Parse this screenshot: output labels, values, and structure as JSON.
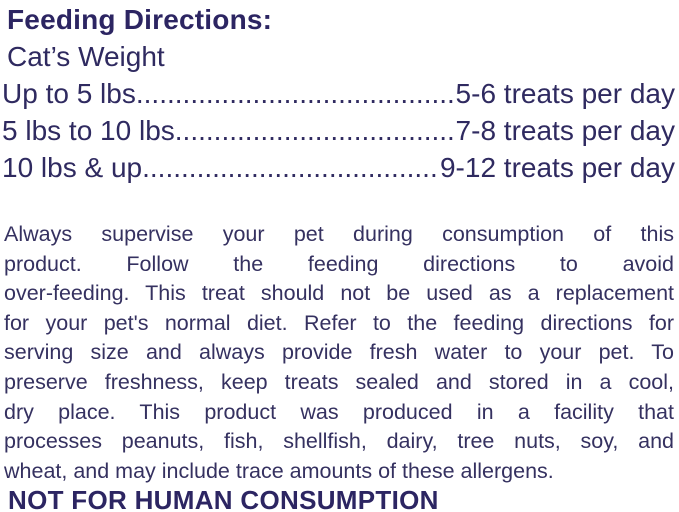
{
  "colors": {
    "background": "#ffffff",
    "text_primary": "#2f2a60",
    "text_bold": "#2c2562",
    "text_body": "#353160"
  },
  "feeding_directions": {
    "title": "Feeding Directions:",
    "subtitle": "Cat’s Weight",
    "leader_dots": "..................................................................",
    "rows": [
      {
        "weight": "Up to 5 lbs",
        "amount": "5-6 treats per day"
      },
      {
        "weight": "5 lbs to 10 lbs",
        "amount": "7-8 treats per day"
      },
      {
        "weight": "10 lbs & up",
        "amount": "9-12 treats per day"
      }
    ]
  },
  "disclaimer": {
    "lines": [
      "Always supervise your pet during consumption of this",
      "product. Follow the feeding directions to avoid",
      "over-feeding. This treat should not be used as a replacement",
      "for your pet's normal diet. Refer to the feeding directions for",
      "serving size and always provide fresh water to your pet. To",
      "preserve freshness, keep treats sealed and stored in a cool,",
      "dry place. This product was produced in a facility that",
      "processes peanuts, fish, shellfish, dairy, tree nuts, soy, and",
      "wheat, and may include trace amounts of these allergens."
    ],
    "warning": "NOT FOR HUMAN CONSUMPTION"
  }
}
